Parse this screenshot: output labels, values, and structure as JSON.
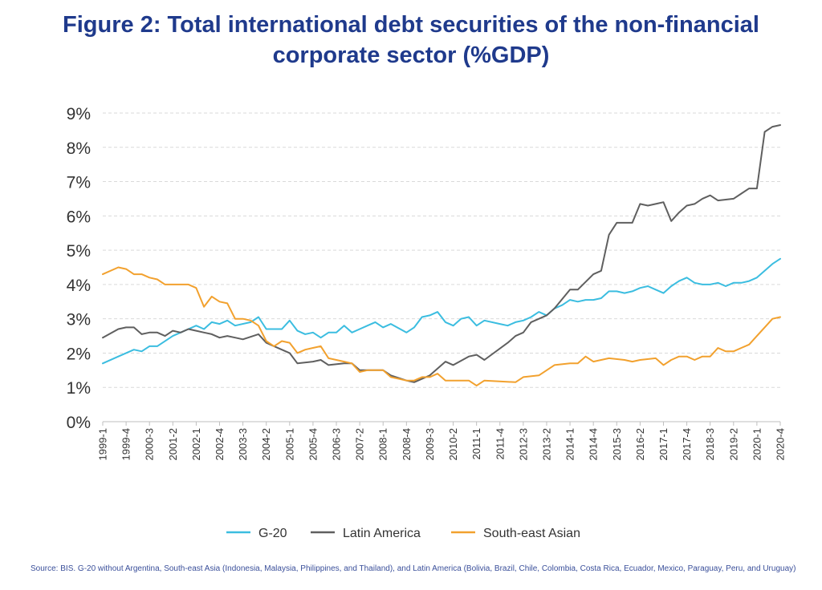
{
  "title_line1": "Figure 2: Total international debt securities of the non-financial",
  "title_line2": "corporate sector (%GDP)",
  "source": "Source: BIS. G-20 without Argentina, South-east Asia (Indonesia, Malaysia, Philippines, and Thailand), and Latin America (Bolivia, Brazil, Chile, Colombia, Costa Rica, Ecuador, Mexico, Paraguay, Peru, and Uruguay)",
  "chart_data": {
    "type": "line",
    "ylim": [
      0,
      9
    ],
    "y_ticks": [
      0,
      1,
      2,
      3,
      4,
      5,
      6,
      7,
      8,
      9
    ],
    "y_tick_labels": [
      "0%",
      "1%",
      "2%",
      "3%",
      "4%",
      "5%",
      "6%",
      "7%",
      "8%",
      "9%"
    ],
    "x_range": [
      "1999-1",
      "2020-4"
    ],
    "x_tick_labels": [
      "1999-1",
      "1999-4",
      "2000-3",
      "2001-2",
      "2002-1",
      "2002-4",
      "2003-3",
      "2004-2",
      "2005-1",
      "2005-4",
      "2006-3",
      "2007-2",
      "2008-1",
      "2008-4",
      "2009-3",
      "2010-2",
      "2011-1",
      "2011-4",
      "2012-3",
      "2013-2",
      "2014-1",
      "2014-4",
      "2015-3",
      "2016-2",
      "2017-1",
      "2017-4",
      "2018-3",
      "2019-2",
      "2020-1",
      "2020-4"
    ],
    "grid": true,
    "legend_position": "bottom",
    "series": [
      {
        "name": "G-20",
        "color": "#3bbde0",
        "points": [
          [
            "1999-1",
            1.7
          ],
          [
            "1999-3",
            1.9
          ],
          [
            "1999-4",
            2.0
          ],
          [
            "2000-1",
            2.1
          ],
          [
            "2000-2",
            2.05
          ],
          [
            "2000-3",
            2.2
          ],
          [
            "2000-4",
            2.2
          ],
          [
            "2001-2",
            2.5
          ],
          [
            "2001-4",
            2.7
          ],
          [
            "2002-1",
            2.8
          ],
          [
            "2002-2",
            2.7
          ],
          [
            "2002-3",
            2.9
          ],
          [
            "2002-4",
            2.85
          ],
          [
            "2003-1",
            2.95
          ],
          [
            "2003-2",
            2.8
          ],
          [
            "2003-4",
            2.9
          ],
          [
            "2004-1",
            3.05
          ],
          [
            "2004-2",
            2.7
          ],
          [
            "2004-4",
            2.7
          ],
          [
            "2005-1",
            2.95
          ],
          [
            "2005-2",
            2.65
          ],
          [
            "2005-3",
            2.55
          ],
          [
            "2005-4",
            2.6
          ],
          [
            "2006-1",
            2.45
          ],
          [
            "2006-2",
            2.6
          ],
          [
            "2006-3",
            2.6
          ],
          [
            "2006-4",
            2.8
          ],
          [
            "2007-1",
            2.6
          ],
          [
            "2007-2",
            2.7
          ],
          [
            "2007-3",
            2.8
          ],
          [
            "2007-4",
            2.9
          ],
          [
            "2008-1",
            2.75
          ],
          [
            "2008-2",
            2.85
          ],
          [
            "2008-4",
            2.6
          ],
          [
            "2009-1",
            2.75
          ],
          [
            "2009-2",
            3.05
          ],
          [
            "2009-3",
            3.1
          ],
          [
            "2009-4",
            3.2
          ],
          [
            "2010-1",
            2.9
          ],
          [
            "2010-2",
            2.8
          ],
          [
            "2010-3",
            3.0
          ],
          [
            "2010-4",
            3.05
          ],
          [
            "2011-1",
            2.8
          ],
          [
            "2011-2",
            2.95
          ],
          [
            "2011-4",
            2.85
          ],
          [
            "2012-1",
            2.8
          ],
          [
            "2012-2",
            2.9
          ],
          [
            "2012-3",
            2.95
          ],
          [
            "2012-4",
            3.05
          ],
          [
            "2013-1",
            3.2
          ],
          [
            "2013-2",
            3.1
          ],
          [
            "2013-3",
            3.3
          ],
          [
            "2013-4",
            3.4
          ],
          [
            "2014-1",
            3.55
          ],
          [
            "2014-2",
            3.5
          ],
          [
            "2014-3",
            3.55
          ],
          [
            "2014-4",
            3.55
          ],
          [
            "2015-1",
            3.6
          ],
          [
            "2015-2",
            3.8
          ],
          [
            "2015-3",
            3.8
          ],
          [
            "2015-4",
            3.75
          ],
          [
            "2016-1",
            3.8
          ],
          [
            "2016-2",
            3.9
          ],
          [
            "2016-3",
            3.95
          ],
          [
            "2016-4",
            3.85
          ],
          [
            "2017-1",
            3.75
          ],
          [
            "2017-2",
            3.95
          ],
          [
            "2017-3",
            4.1
          ],
          [
            "2017-4",
            4.2
          ],
          [
            "2018-1",
            4.05
          ],
          [
            "2018-2",
            4.0
          ],
          [
            "2018-3",
            4.0
          ],
          [
            "2018-4",
            4.05
          ],
          [
            "2019-1",
            3.95
          ],
          [
            "2019-2",
            4.05
          ],
          [
            "2019-3",
            4.05
          ],
          [
            "2019-4",
            4.1
          ],
          [
            "2020-1",
            4.2
          ],
          [
            "2020-2",
            4.4
          ],
          [
            "2020-3",
            4.6
          ],
          [
            "2020-4",
            4.75
          ]
        ]
      },
      {
        "name": "Latin America",
        "color": "#5f5f5f",
        "points": [
          [
            "1999-1",
            2.45
          ],
          [
            "1999-3",
            2.7
          ],
          [
            "1999-4",
            2.75
          ],
          [
            "2000-1",
            2.75
          ],
          [
            "2000-2",
            2.55
          ],
          [
            "2000-3",
            2.6
          ],
          [
            "2000-4",
            2.6
          ],
          [
            "2001-1",
            2.5
          ],
          [
            "2001-2",
            2.65
          ],
          [
            "2001-3",
            2.6
          ],
          [
            "2001-4",
            2.7
          ],
          [
            "2002-1",
            2.65
          ],
          [
            "2002-2",
            2.6
          ],
          [
            "2002-3",
            2.55
          ],
          [
            "2002-4",
            2.45
          ],
          [
            "2003-1",
            2.5
          ],
          [
            "2003-2",
            2.45
          ],
          [
            "2003-3",
            2.4
          ],
          [
            "2004-1",
            2.55
          ],
          [
            "2004-2",
            2.3
          ],
          [
            "2004-3",
            2.2
          ],
          [
            "2005-1",
            2.0
          ],
          [
            "2005-2",
            1.7
          ],
          [
            "2005-4",
            1.75
          ],
          [
            "2006-1",
            1.8
          ],
          [
            "2006-2",
            1.65
          ],
          [
            "2006-4",
            1.7
          ],
          [
            "2007-1",
            1.7
          ],
          [
            "2007-2",
            1.5
          ],
          [
            "2008-1",
            1.5
          ],
          [
            "2008-2",
            1.35
          ],
          [
            "2008-4",
            1.2
          ],
          [
            "2009-1",
            1.15
          ],
          [
            "2009-3",
            1.35
          ],
          [
            "2010-1",
            1.75
          ],
          [
            "2010-2",
            1.65
          ],
          [
            "2010-4",
            1.9
          ],
          [
            "2011-1",
            1.95
          ],
          [
            "2011-2",
            1.8
          ],
          [
            "2012-1",
            2.3
          ],
          [
            "2012-2",
            2.5
          ],
          [
            "2012-3",
            2.6
          ],
          [
            "2012-4",
            2.9
          ],
          [
            "2013-2",
            3.1
          ],
          [
            "2013-3",
            3.3
          ],
          [
            "2014-1",
            3.85
          ],
          [
            "2014-2",
            3.85
          ],
          [
            "2014-4",
            4.3
          ],
          [
            "2015-1",
            4.4
          ],
          [
            "2015-2",
            5.45
          ],
          [
            "2015-3",
            5.8
          ],
          [
            "2015-4",
            5.8
          ],
          [
            "2016-1",
            5.8
          ],
          [
            "2016-2",
            6.35
          ],
          [
            "2016-3",
            6.3
          ],
          [
            "2016-4",
            6.35
          ],
          [
            "2017-1",
            6.4
          ],
          [
            "2017-2",
            5.85
          ],
          [
            "2017-3",
            6.1
          ],
          [
            "2017-4",
            6.3
          ],
          [
            "2018-1",
            6.35
          ],
          [
            "2018-2",
            6.5
          ],
          [
            "2018-3",
            6.6
          ],
          [
            "2018-4",
            6.45
          ],
          [
            "2019-2",
            6.5
          ],
          [
            "2019-3",
            6.65
          ],
          [
            "2019-4",
            6.8
          ],
          [
            "2020-1",
            6.8
          ],
          [
            "2020-2",
            8.45
          ],
          [
            "2020-3",
            8.6
          ],
          [
            "2020-4",
            8.65
          ]
        ]
      },
      {
        "name": "South-east Asian",
        "color": "#f2a12e",
        "points": [
          [
            "1999-1",
            4.3
          ],
          [
            "1999-3",
            4.5
          ],
          [
            "1999-4",
            4.45
          ],
          [
            "2000-1",
            4.3
          ],
          [
            "2000-2",
            4.3
          ],
          [
            "2000-3",
            4.2
          ],
          [
            "2000-4",
            4.15
          ],
          [
            "2001-1",
            4.0
          ],
          [
            "2001-2",
            4.0
          ],
          [
            "2001-4",
            4.0
          ],
          [
            "2002-1",
            3.9
          ],
          [
            "2002-2",
            3.35
          ],
          [
            "2002-3",
            3.65
          ],
          [
            "2002-4",
            3.5
          ],
          [
            "2003-1",
            3.45
          ],
          [
            "2003-2",
            3.0
          ],
          [
            "2003-3",
            3.0
          ],
          [
            "2003-4",
            2.95
          ],
          [
            "2004-1",
            2.8
          ],
          [
            "2004-2",
            2.35
          ],
          [
            "2004-3",
            2.2
          ],
          [
            "2004-4",
            2.35
          ],
          [
            "2005-1",
            2.3
          ],
          [
            "2005-2",
            2.0
          ],
          [
            "2005-3",
            2.1
          ],
          [
            "2005-4",
            2.15
          ],
          [
            "2006-1",
            2.2
          ],
          [
            "2006-2",
            1.85
          ],
          [
            "2006-4",
            1.75
          ],
          [
            "2007-1",
            1.7
          ],
          [
            "2007-2",
            1.45
          ],
          [
            "2007-3",
            1.5
          ],
          [
            "2008-1",
            1.5
          ],
          [
            "2008-2",
            1.3
          ],
          [
            "2008-4",
            1.2
          ],
          [
            "2009-1",
            1.2
          ],
          [
            "2009-2",
            1.3
          ],
          [
            "2009-3",
            1.3
          ],
          [
            "2009-4",
            1.4
          ],
          [
            "2010-1",
            1.2
          ],
          [
            "2010-2",
            1.2
          ],
          [
            "2010-4",
            1.2
          ],
          [
            "2011-1",
            1.05
          ],
          [
            "2011-2",
            1.2
          ],
          [
            "2012-2",
            1.15
          ],
          [
            "2012-3",
            1.3
          ],
          [
            "2013-1",
            1.35
          ],
          [
            "2013-3",
            1.65
          ],
          [
            "2014-1",
            1.7
          ],
          [
            "2014-2",
            1.7
          ],
          [
            "2014-3",
            1.9
          ],
          [
            "2014-4",
            1.75
          ],
          [
            "2015-1",
            1.8
          ],
          [
            "2015-2",
            1.85
          ],
          [
            "2015-4",
            1.8
          ],
          [
            "2016-1",
            1.75
          ],
          [
            "2016-2",
            1.8
          ],
          [
            "2016-4",
            1.85
          ],
          [
            "2017-1",
            1.65
          ],
          [
            "2017-2",
            1.8
          ],
          [
            "2017-3",
            1.9
          ],
          [
            "2017-4",
            1.9
          ],
          [
            "2018-1",
            1.8
          ],
          [
            "2018-2",
            1.9
          ],
          [
            "2018-3",
            1.9
          ],
          [
            "2018-4",
            2.15
          ],
          [
            "2019-1",
            2.05
          ],
          [
            "2019-2",
            2.05
          ],
          [
            "2019-3",
            2.15
          ],
          [
            "2019-4",
            2.25
          ],
          [
            "2020-1",
            2.5
          ],
          [
            "2020-2",
            2.75
          ],
          [
            "2020-3",
            3.0
          ],
          [
            "2020-4",
            3.05
          ]
        ]
      }
    ]
  }
}
